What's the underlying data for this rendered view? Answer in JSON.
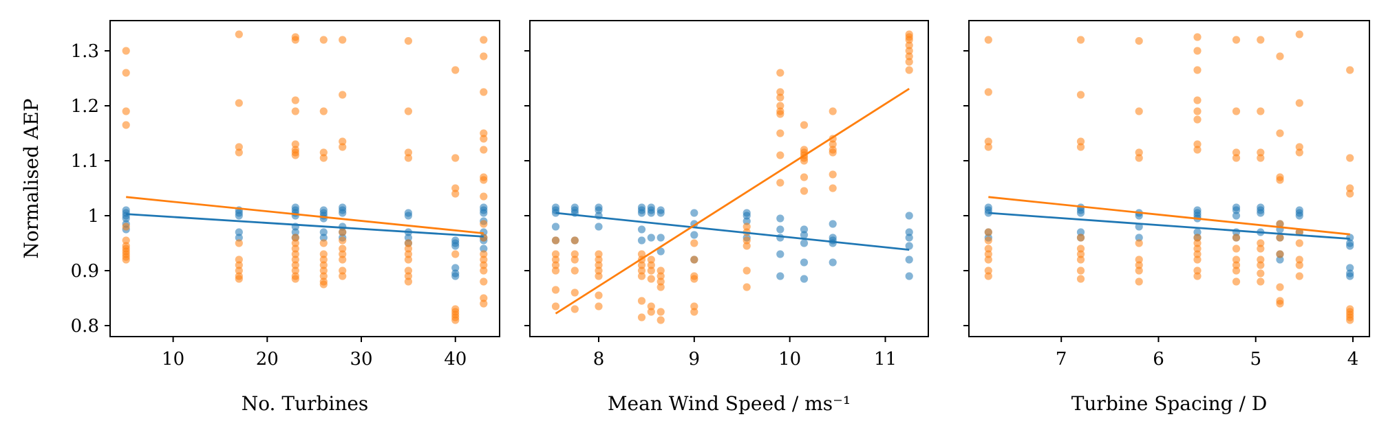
{
  "colors": {
    "series_a": "#1f77b4",
    "series_b": "#ff7f0e",
    "axis": "#000000"
  },
  "chart_data": [
    {
      "type": "scatter",
      "xlabel": "No. Turbines",
      "ylabel": "Normalised AEP",
      "xlim": [
        3.3,
        44.7
      ],
      "ylim": [
        0.78,
        1.355
      ],
      "xticks": [
        10,
        20,
        30,
        40
      ],
      "yticks": [
        0.8,
        0.9,
        1.0,
        1.1,
        1.2,
        1.3
      ],
      "series": [
        {
          "color": "#1f77b4",
          "x": [
            5,
            5,
            5,
            5,
            5,
            5,
            17,
            17,
            17,
            17,
            17,
            23,
            23,
            23,
            23,
            23,
            23,
            23,
            26,
            26,
            26,
            26,
            26,
            26,
            28,
            28,
            28,
            28,
            28,
            28,
            35,
            35,
            35,
            35,
            35,
            40,
            40,
            40,
            40,
            40,
            40,
            43,
            43,
            43,
            43,
            43,
            43,
            43,
            43
          ],
          "y": [
            1.01,
            1.005,
            1.0,
            0.995,
            0.985,
            0.975,
            1.01,
            1.005,
            1.0,
            0.97,
            0.96,
            1.015,
            1.01,
            1.005,
            1.0,
            0.98,
            0.97,
            0.96,
            1.01,
            1.005,
            1.0,
            0.995,
            0.97,
            0.96,
            1.015,
            1.01,
            1.005,
            0.98,
            0.97,
            0.96,
            1.005,
            1.0,
            0.97,
            0.96,
            0.95,
            0.955,
            0.95,
            0.945,
            0.905,
            0.895,
            0.89,
            1.015,
            1.01,
            1.005,
            0.99,
            0.97,
            0.96,
            0.955,
            0.94
          ],
          "fit": [
            [
              5,
              1.003
            ],
            [
              43,
              0.962
            ]
          ]
        },
        {
          "color": "#ff7f0e",
          "x": [
            5,
            5,
            5,
            5,
            5,
            5,
            5,
            5,
            5,
            5,
            5,
            5,
            17,
            17,
            17,
            17,
            17,
            17,
            17,
            17,
            17,
            17,
            23,
            23,
            23,
            23,
            23,
            23,
            23,
            23,
            23,
            23,
            23,
            23,
            23,
            23,
            23,
            23,
            23,
            26,
            26,
            26,
            26,
            26,
            26,
            26,
            26,
            26,
            26,
            26,
            26,
            28,
            28,
            28,
            28,
            28,
            28,
            28,
            28,
            28,
            28,
            28,
            35,
            35,
            35,
            35,
            35,
            35,
            35,
            35,
            35,
            35,
            35,
            40,
            40,
            40,
            40,
            40,
            40,
            40,
            40,
            40,
            40,
            43,
            43,
            43,
            43,
            43,
            43,
            43,
            43,
            43,
            43,
            43,
            43,
            43,
            43,
            43,
            43,
            43,
            43
          ],
          "y": [
            1.3,
            1.26,
            1.19,
            1.165,
            0.955,
            0.945,
            0.94,
            0.935,
            0.93,
            0.925,
            0.92,
            0.98,
            1.33,
            1.205,
            1.125,
            1.115,
            0.95,
            0.92,
            0.91,
            0.9,
            0.89,
            0.885,
            1.325,
            1.32,
            1.21,
            1.19,
            1.13,
            1.12,
            1.115,
            1.11,
            0.96,
            0.95,
            0.94,
            0.93,
            0.92,
            0.91,
            0.9,
            0.89,
            0.885,
            1.32,
            1.19,
            1.115,
            1.105,
            0.95,
            0.93,
            0.92,
            0.91,
            0.9,
            0.89,
            0.88,
            0.875,
            1.32,
            1.22,
            1.135,
            1.125,
            0.955,
            0.94,
            0.93,
            0.92,
            0.9,
            0.89,
            0.97,
            1.318,
            1.19,
            1.115,
            1.105,
            0.95,
            0.94,
            0.93,
            0.92,
            0.9,
            0.89,
            0.88,
            1.265,
            1.105,
            1.05,
            1.04,
            0.83,
            0.825,
            0.82,
            0.815,
            0.81,
            0.93,
            1.32,
            1.29,
            1.225,
            1.15,
            1.14,
            1.12,
            1.07,
            1.065,
            1.035,
            0.985,
            0.96,
            0.93,
            0.92,
            0.91,
            0.9,
            0.88,
            0.85,
            0.84
          ],
          "fit": [
            [
              5,
              1.034
            ],
            [
              43,
              0.968
            ]
          ]
        }
      ]
    },
    {
      "type": "scatter",
      "xlabel": "Mean Wind Speed / ms⁻¹",
      "ylabel": "",
      "xlim": [
        7.28,
        11.45
      ],
      "ylim": [
        0.78,
        1.355
      ],
      "xticks": [
        8,
        9,
        10,
        11
      ],
      "yticks": [
        0.8,
        0.9,
        1.0,
        1.1,
        1.2,
        1.3
      ],
      "series": [
        {
          "color": "#1f77b4",
          "x": [
            7.55,
            7.55,
            7.55,
            7.55,
            7.55,
            7.75,
            7.75,
            7.75,
            7.75,
            8.0,
            8.0,
            8.0,
            8.0,
            8.45,
            8.45,
            8.45,
            8.45,
            8.45,
            8.55,
            8.55,
            8.55,
            8.55,
            8.65,
            8.65,
            8.65,
            8.65,
            9.0,
            9.0,
            9.0,
            9.0,
            9.55,
            9.55,
            9.55,
            9.55,
            9.9,
            9.9,
            9.9,
            9.9,
            9.9,
            10.15,
            10.15,
            10.15,
            10.15,
            10.15,
            10.45,
            10.45,
            10.45,
            10.45,
            10.45,
            11.25,
            11.25,
            11.25,
            11.25,
            11.25,
            11.25
          ],
          "y": [
            1.015,
            1.01,
            1.005,
            0.98,
            0.955,
            1.015,
            1.01,
            1.005,
            0.955,
            1.015,
            1.01,
            1.0,
            0.98,
            1.015,
            1.01,
            1.005,
            0.975,
            0.955,
            1.015,
            1.01,
            1.005,
            0.96,
            1.01,
            1.005,
            0.96,
            0.935,
            1.005,
            0.985,
            0.965,
            0.92,
            1.005,
            1.0,
            0.99,
            0.96,
            0.995,
            0.975,
            0.96,
            0.93,
            0.89,
            0.975,
            0.965,
            0.95,
            0.915,
            0.885,
            0.985,
            0.96,
            0.955,
            0.95,
            0.915,
            1.0,
            0.97,
            0.96,
            0.945,
            0.92,
            0.89
          ],
          "fit": [
            [
              7.55,
              1.005
            ],
            [
              11.25,
              0.938
            ]
          ]
        },
        {
          "color": "#ff7f0e",
          "x": [
            7.55,
            7.55,
            7.55,
            7.55,
            7.55,
            7.55,
            7.55,
            7.75,
            7.75,
            7.75,
            7.75,
            7.75,
            7.75,
            8.0,
            8.0,
            8.0,
            8.0,
            8.0,
            8.0,
            8.0,
            8.45,
            8.45,
            8.45,
            8.45,
            8.45,
            8.45,
            8.45,
            8.55,
            8.55,
            8.55,
            8.55,
            8.55,
            8.55,
            8.65,
            8.65,
            8.65,
            8.65,
            8.65,
            8.65,
            9.0,
            9.0,
            9.0,
            9.0,
            9.0,
            9.0,
            9.55,
            9.55,
            9.55,
            9.55,
            9.55,
            9.55,
            9.9,
            9.9,
            9.9,
            9.9,
            9.9,
            9.9,
            9.9,
            9.9,
            9.9,
            10.15,
            10.15,
            10.15,
            10.15,
            10.15,
            10.15,
            10.15,
            10.15,
            10.45,
            10.45,
            10.45,
            10.45,
            10.45,
            10.45,
            10.45,
            11.25,
            11.25,
            11.25,
            11.25,
            11.25,
            11.25,
            11.25,
            11.25
          ],
          "y": [
            0.955,
            0.93,
            0.92,
            0.91,
            0.9,
            0.865,
            0.835,
            0.955,
            0.93,
            0.92,
            0.9,
            0.86,
            0.83,
            0.93,
            0.92,
            0.91,
            0.9,
            0.89,
            0.855,
            0.835,
            0.93,
            0.92,
            0.91,
            0.9,
            0.89,
            0.845,
            0.815,
            0.92,
            0.91,
            0.9,
            0.885,
            0.835,
            0.825,
            0.9,
            0.89,
            0.88,
            0.87,
            0.825,
            0.81,
            0.95,
            0.92,
            0.89,
            0.885,
            0.835,
            0.825,
            0.98,
            0.97,
            0.955,
            0.945,
            0.9,
            0.87,
            1.26,
            1.225,
            1.215,
            1.2,
            1.19,
            1.185,
            1.15,
            1.11,
            1.06,
            1.165,
            1.12,
            1.115,
            1.11,
            1.105,
            1.1,
            1.07,
            1.045,
            1.19,
            1.14,
            1.13,
            1.12,
            1.115,
            1.075,
            1.05,
            1.33,
            1.325,
            1.32,
            1.31,
            1.3,
            1.29,
            1.28,
            1.265
          ],
          "fit": [
            [
              7.55,
              0.822
            ],
            [
              11.25,
              1.231
            ]
          ]
        }
      ]
    },
    {
      "type": "scatter",
      "xlabel": "Turbine Spacing / D",
      "ylabel": "",
      "xlim": [
        7.95,
        3.83
      ],
      "ylim": [
        0.78,
        1.355
      ],
      "xticks": [
        7,
        6,
        5,
        4
      ],
      "yticks": [
        0.8,
        0.9,
        1.0,
        1.1,
        1.2,
        1.3
      ],
      "series": [
        {
          "color": "#1f77b4",
          "x": [
            7.75,
            7.75,
            7.75,
            7.75,
            7.75,
            6.8,
            6.8,
            6.8,
            6.8,
            6.8,
            6.2,
            6.2,
            6.2,
            6.2,
            5.6,
            5.6,
            5.6,
            5.6,
            5.6,
            5.6,
            5.2,
            5.2,
            5.2,
            5.2,
            5.2,
            4.95,
            4.95,
            4.95,
            4.95,
            4.75,
            4.75,
            4.75,
            4.75,
            4.75,
            4.55,
            4.55,
            4.55,
            4.55,
            4.03,
            4.03,
            4.03,
            4.03,
            4.03,
            4.03
          ],
          "y": [
            1.015,
            1.01,
            1.005,
            0.97,
            0.96,
            1.015,
            1.01,
            1.005,
            0.97,
            0.96,
            1.005,
            1.0,
            0.98,
            0.96,
            1.01,
            1.005,
            1.0,
            0.995,
            0.97,
            0.96,
            1.015,
            1.01,
            1.0,
            0.97,
            0.96,
            1.015,
            1.01,
            1.005,
            0.97,
            0.985,
            0.975,
            0.96,
            0.93,
            0.92,
            1.01,
            1.005,
            1.0,
            0.97,
            0.96,
            0.95,
            0.945,
            0.905,
            0.895,
            0.89
          ],
          "fit": [
            [
              7.75,
              1.005
            ],
            [
              4.03,
              0.958
            ]
          ]
        },
        {
          "color": "#ff7f0e",
          "x": [
            7.75,
            7.75,
            7.75,
            7.75,
            7.75,
            7.75,
            7.75,
            7.75,
            7.75,
            7.75,
            7.75,
            6.8,
            6.8,
            6.8,
            6.8,
            6.8,
            6.8,
            6.8,
            6.8,
            6.8,
            6.8,
            6.2,
            6.2,
            6.2,
            6.2,
            6.2,
            6.2,
            6.2,
            6.2,
            6.2,
            5.6,
            5.6,
            5.6,
            5.6,
            5.6,
            5.6,
            5.6,
            5.6,
            5.6,
            5.6,
            5.6,
            5.6,
            5.6,
            5.6,
            5.6,
            5.2,
            5.2,
            5.2,
            5.2,
            5.2,
            5.2,
            5.2,
            5.2,
            5.2,
            5.2,
            4.95,
            4.95,
            4.95,
            4.95,
            4.95,
            4.95,
            4.95,
            4.95,
            4.95,
            4.95,
            4.75,
            4.75,
            4.75,
            4.75,
            4.75,
            4.75,
            4.75,
            4.75,
            4.75,
            4.75,
            4.55,
            4.55,
            4.55,
            4.55,
            4.55,
            4.55,
            4.55,
            4.55,
            4.55,
            4.03,
            4.03,
            4.03,
            4.03,
            4.03,
            4.03,
            4.03,
            4.03,
            4.03
          ],
          "y": [
            1.32,
            1.225,
            1.135,
            1.125,
            0.97,
            0.955,
            0.94,
            0.93,
            0.92,
            0.9,
            0.89,
            1.32,
            1.22,
            1.135,
            1.125,
            0.96,
            0.94,
            0.93,
            0.92,
            0.9,
            0.885,
            1.318,
            1.19,
            1.115,
            1.105,
            0.95,
            0.92,
            0.91,
            0.9,
            0.88,
            1.325,
            1.3,
            1.265,
            1.21,
            1.19,
            1.175,
            1.13,
            1.12,
            0.96,
            0.95,
            0.94,
            0.93,
            0.92,
            0.9,
            0.89,
            1.32,
            1.19,
            1.115,
            1.105,
            0.96,
            0.94,
            0.92,
            0.91,
            0.9,
            0.88,
            1.32,
            1.19,
            1.115,
            1.105,
            0.95,
            0.94,
            0.92,
            0.91,
            0.895,
            0.88,
            1.29,
            1.15,
            1.07,
            1.065,
            0.985,
            0.96,
            0.93,
            0.87,
            0.845,
            0.84,
            1.33,
            1.205,
            1.125,
            1.115,
            0.97,
            0.95,
            0.92,
            0.91,
            0.89,
            1.265,
            1.105,
            1.05,
            1.04,
            0.83,
            0.825,
            0.82,
            0.815,
            0.81
          ],
          "fit": [
            [
              7.75,
              1.034
            ],
            [
              4.03,
              0.966
            ]
          ]
        }
      ]
    }
  ]
}
